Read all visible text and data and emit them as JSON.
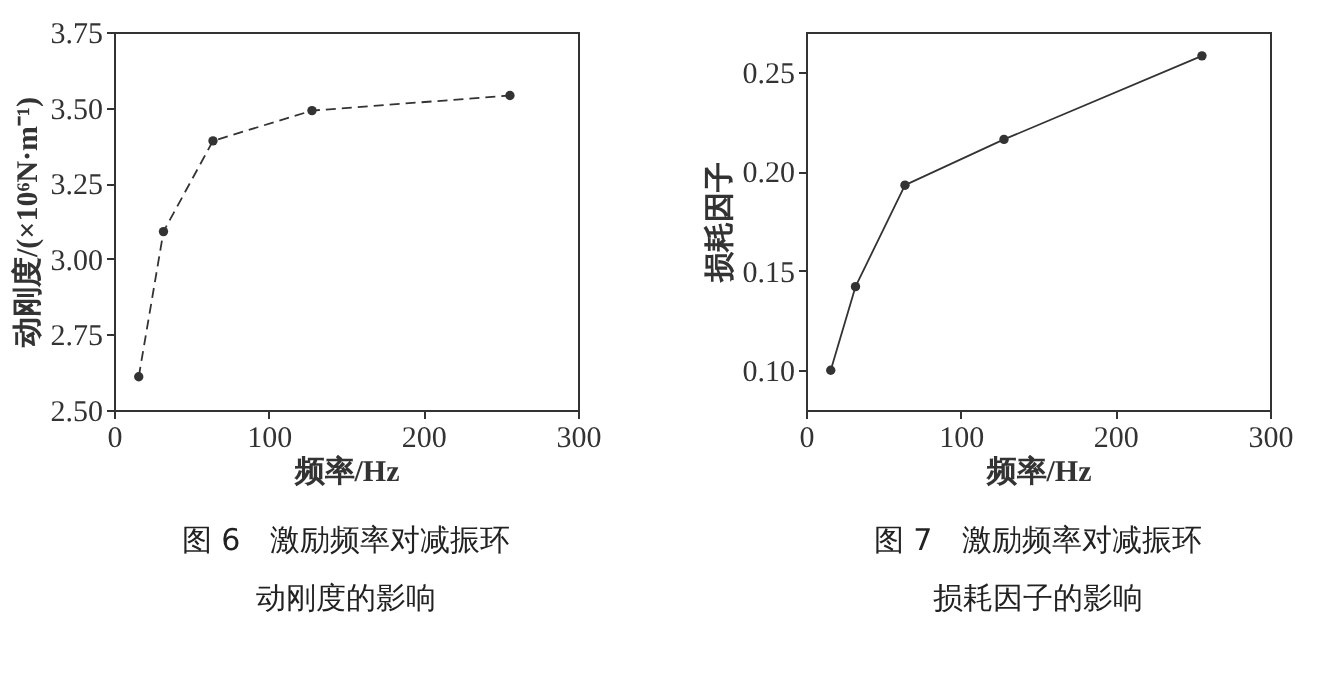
{
  "chart_data": [
    {
      "type": "line",
      "title": "图 6　激励频率对减振环",
      "subtitle": "动刚度的影响",
      "xlabel": "频率/Hz",
      "ylabel": "动刚度/(×10⁶N·m⁻¹)",
      "x": [
        16,
        32,
        64,
        128,
        256
      ],
      "series": [
        {
          "color": "#333333",
          "values": [
            2.61,
            3.09,
            3.39,
            3.49,
            3.54
          ]
        }
      ],
      "xlim": [
        0,
        300
      ],
      "xticks": [
        0,
        100,
        200,
        300
      ],
      "ylim": [
        2.5,
        3.75
      ],
      "yticks": [
        {
          "value": 2.5,
          "label": "2.50"
        },
        {
          "value": 2.75,
          "label": "2.75"
        },
        {
          "value": 3,
          "label": "3.00"
        },
        {
          "value": 3.25,
          "label": "3.25"
        },
        {
          "value": 3.5,
          "label": "3.50"
        },
        {
          "value": 3.75,
          "label": "3.75"
        }
      ],
      "marker": "circle",
      "line_style": "dashed"
    },
    {
      "type": "line",
      "title": "图 7　激励频率对减振环",
      "subtitle": "损耗因子的影响",
      "xlabel": "频率/Hz",
      "ylabel": "损耗因子",
      "x": [
        16,
        32,
        64,
        128,
        256
      ],
      "series": [
        {
          "color": "#333333",
          "values": [
            0.1,
            0.142,
            0.193,
            0.216,
            0.258
          ]
        }
      ],
      "xlim": [
        0,
        300
      ],
      "xticks": [
        0,
        100,
        200,
        300
      ],
      "ylim": [
        0.08,
        0.27
      ],
      "yticks": [
        {
          "value": 0.1,
          "label": "0.10"
        },
        {
          "value": 0.15,
          "label": "0.15"
        },
        {
          "value": 0.2,
          "label": "0.20"
        },
        {
          "value": 0.25,
          "label": "0.25"
        }
      ],
      "marker": "circle",
      "line_style": "solid"
    }
  ]
}
